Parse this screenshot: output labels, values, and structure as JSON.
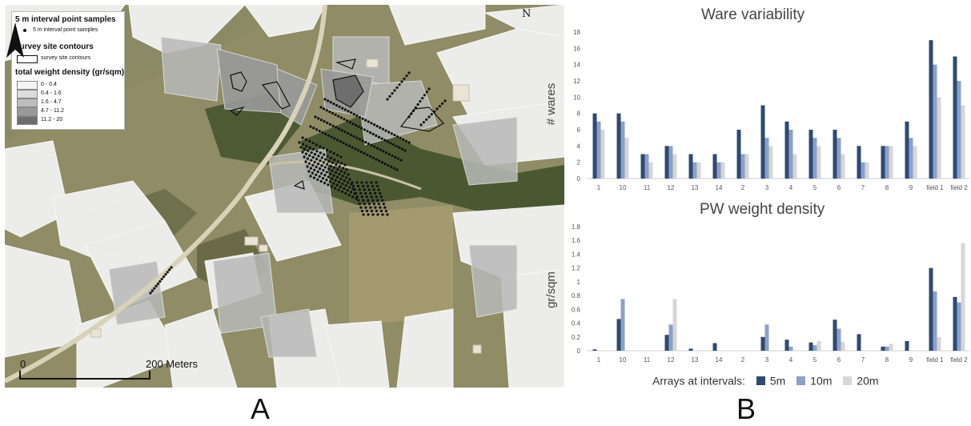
{
  "panel_a": {
    "label": "A",
    "north_label": "N",
    "scale": {
      "start": "0",
      "end": "200 Meters"
    },
    "legend": {
      "points_title": "5 m interval point samples",
      "points_sub": "5 m interval point samples",
      "contours_title": "survey site contours",
      "contours_sub": "survey site contours",
      "density_title": "total weight density (gr/sqm)",
      "classes": [
        {
          "label": "0 - 0.4",
          "color": "#f4f4f4"
        },
        {
          "label": "0.4 - 1.6",
          "color": "#dcdcdc"
        },
        {
          "label": "1.6 - 4.7",
          "color": "#bdbdbd"
        },
        {
          "label": "4.7 - 11.2",
          "color": "#9a9a9a"
        },
        {
          "label": "11.2 - 20",
          "color": "#6e6e6e"
        }
      ]
    }
  },
  "panel_b": {
    "label": "B",
    "legend_prefix": "Arrays at intervals:",
    "series_colors": [
      "#2e4a72",
      "#8da0c8",
      "#d6d6d6"
    ]
  },
  "chart_data": [
    {
      "type": "bar",
      "title": "Ware variability",
      "ylabel": "# wares",
      "xlabel": "",
      "categories": [
        "1",
        "10",
        "11",
        "12",
        "13",
        "14",
        "2",
        "3",
        "4",
        "5",
        "6",
        "7",
        "8",
        "9",
        "field 1",
        "field 2"
      ],
      "ylim": [
        0,
        18
      ],
      "yticks": [
        0,
        2,
        4,
        6,
        8,
        10,
        12,
        14,
        16,
        18
      ],
      "series": [
        {
          "name": "5m",
          "values": [
            8,
            8,
            3,
            4,
            3,
            3,
            6,
            9,
            7,
            6,
            6,
            4,
            4,
            7,
            17,
            15
          ]
        },
        {
          "name": "10m",
          "values": [
            7,
            7,
            3,
            4,
            2,
            2,
            3,
            5,
            6,
            5,
            5,
            2,
            4,
            5,
            14,
            12
          ]
        },
        {
          "name": "20m",
          "values": [
            6,
            5,
            2,
            3,
            2,
            2,
            3,
            4,
            3,
            4,
            3,
            2,
            4,
            4,
            10,
            9
          ]
        }
      ]
    },
    {
      "type": "bar",
      "title": "PW weight density",
      "ylabel": "gr/sqm",
      "xlabel": "",
      "categories": [
        "1",
        "10",
        "11",
        "12",
        "13",
        "14",
        "2",
        "3",
        "4",
        "5",
        "6",
        "7",
        "8",
        "9",
        "field 1",
        "field 2"
      ],
      "ylim": [
        0,
        1.8
      ],
      "yticks": [
        "0",
        "0.2",
        "0.4",
        "0.6",
        "0.8",
        "1",
        "1.2",
        "1.4",
        "1.6",
        "1.8"
      ],
      "series": [
        {
          "name": "5m",
          "values": [
            0.02,
            0.46,
            0,
            0.23,
            0.03,
            0.11,
            0,
            0.2,
            0.16,
            0.12,
            0.45,
            0.24,
            0.06,
            0.14,
            1.2,
            0.78
          ]
        },
        {
          "name": "10m",
          "values": [
            0,
            0.75,
            0,
            0.38,
            0,
            0,
            0,
            0.38,
            0.06,
            0.08,
            0.32,
            0,
            0.06,
            0,
            0.86,
            0.7
          ]
        },
        {
          "name": "20m",
          "values": [
            0,
            0,
            0,
            0.75,
            0,
            0,
            0,
            0,
            0,
            0.14,
            0.13,
            0,
            0.1,
            0,
            0.2,
            1.56
          ]
        }
      ]
    }
  ]
}
